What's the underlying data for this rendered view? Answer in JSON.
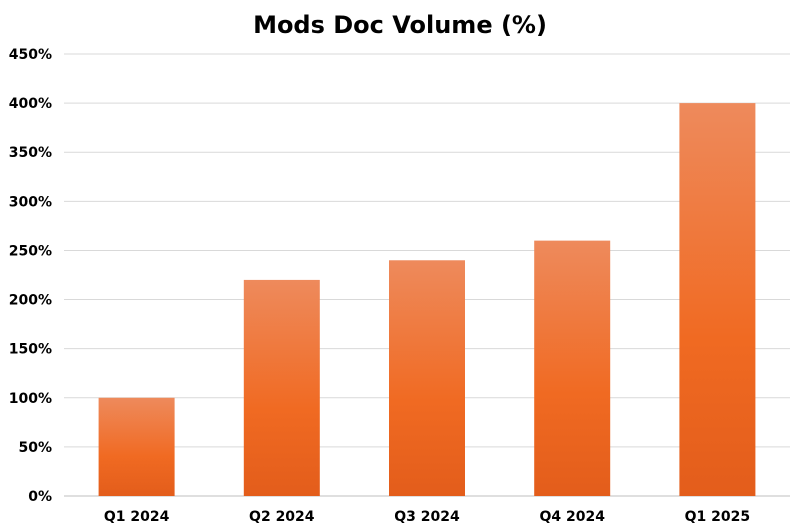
{
  "chart_data": {
    "type": "bar",
    "title": "Mods Doc Volume (%)",
    "categories": [
      "Q1 2024",
      "Q2 2024",
      "Q3 2024",
      "Q4 2024",
      "Q1 2025"
    ],
    "values": [
      100,
      220,
      240,
      260,
      400
    ],
    "ylim": [
      0,
      450
    ],
    "ytick_step": 50,
    "ytick_labels": [
      "0%",
      "50%",
      "100%",
      "150%",
      "200%",
      "250%",
      "300%",
      "350%",
      "400%",
      "450%"
    ],
    "xlabel": "",
    "ylabel": "",
    "grid": true,
    "legend": "none",
    "bar_color_top": "#ee8a5c",
    "bar_color_mid": "#f06a22",
    "bar_color_bottom": "#e35d1b"
  }
}
